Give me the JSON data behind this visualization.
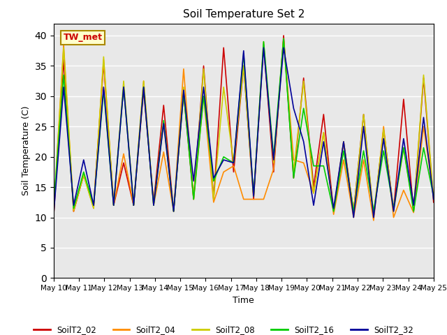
{
  "title": "Soil Temperature Set 2",
  "xlabel": "Time",
  "ylabel": "Soil Temperature (C)",
  "annotation": "TW_met",
  "ylim": [
    0,
    42
  ],
  "yticks": [
    0,
    5,
    10,
    15,
    20,
    25,
    30,
    35,
    40
  ],
  "background_color": "#e8e8e8",
  "figsize": [
    6.4,
    4.8
  ],
  "dpi": 100,
  "series_order": [
    "SoilT2_02",
    "SoilT2_04",
    "SoilT2_08",
    "SoilT2_16",
    "SoilT2_32"
  ],
  "series": {
    "SoilT2_02": {
      "color": "#cc0000",
      "data": [
        10.2,
        36.0,
        11.0,
        17.0,
        12.0,
        35.5,
        12.0,
        19.0,
        12.0,
        31.0,
        12.5,
        28.5,
        11.0,
        30.5,
        13.0,
        35.0,
        13.0,
        38.0,
        17.5,
        35.0,
        13.0,
        38.5,
        17.5,
        40.0,
        16.5,
        33.0,
        15.0,
        27.0,
        11.0,
        22.5,
        11.0,
        27.0,
        10.0,
        24.5,
        11.2,
        29.5,
        11.0,
        33.0,
        12.5
      ]
    },
    "SoilT2_04": {
      "color": "#ff8c00",
      "data": [
        10.5,
        38.5,
        11.0,
        17.0,
        11.5,
        36.0,
        12.0,
        20.5,
        12.0,
        32.5,
        12.0,
        20.8,
        11.0,
        34.5,
        13.0,
        30.0,
        12.5,
        17.5,
        18.5,
        13.0,
        13.0,
        13.0,
        18.0,
        39.5,
        19.5,
        19.0,
        14.0,
        24.0,
        10.5,
        19.5,
        10.0,
        19.5,
        9.5,
        25.0,
        10.0,
        14.5,
        10.8,
        25.0,
        13.5
      ]
    },
    "SoilT2_08": {
      "color": "#cccc00",
      "data": [
        11.0,
        38.0,
        11.2,
        17.0,
        11.5,
        36.5,
        12.0,
        32.5,
        12.0,
        32.5,
        12.0,
        25.5,
        11.0,
        31.5,
        13.0,
        34.5,
        13.0,
        31.5,
        19.0,
        35.0,
        13.5,
        39.0,
        19.0,
        39.5,
        17.5,
        32.5,
        14.0,
        24.0,
        11.0,
        22.5,
        11.0,
        27.0,
        10.5,
        24.5,
        11.0,
        21.5,
        11.2,
        33.5,
        13.0
      ]
    },
    "SoilT2_16": {
      "color": "#00cc00",
      "data": [
        12.0,
        33.5,
        11.5,
        17.5,
        12.0,
        31.0,
        12.0,
        31.5,
        12.0,
        31.5,
        12.0,
        26.0,
        11.0,
        30.5,
        13.0,
        30.0,
        16.0,
        20.0,
        19.0,
        37.0,
        13.5,
        39.0,
        20.0,
        39.5,
        16.5,
        28.0,
        18.5,
        18.5,
        11.0,
        21.0,
        11.0,
        21.0,
        11.0,
        21.0,
        11.5,
        21.5,
        11.0,
        21.5,
        13.5
      ]
    },
    "SoilT2_32": {
      "color": "#000099",
      "data": [
        10.5,
        31.5,
        12.0,
        19.5,
        12.0,
        31.5,
        12.0,
        31.5,
        12.0,
        31.5,
        12.0,
        25.5,
        11.0,
        31.0,
        16.0,
        31.5,
        16.5,
        19.5,
        19.0,
        37.5,
        13.5,
        38.0,
        19.5,
        38.0,
        28.0,
        22.5,
        12.0,
        22.5,
        11.5,
        22.5,
        10.0,
        25.0,
        10.0,
        23.0,
        11.0,
        23.0,
        12.0,
        26.5,
        13.0
      ]
    }
  },
  "xtick_labels": [
    "May 10",
    "May 11",
    "May 12",
    "May 13",
    "May 14",
    "May 15",
    "May 16",
    "May 17",
    "May 18",
    "May 19",
    "May 20",
    "May 21",
    "May 22",
    "May 23",
    "May 24",
    "May 25"
  ],
  "num_points": 39,
  "num_days": 15
}
